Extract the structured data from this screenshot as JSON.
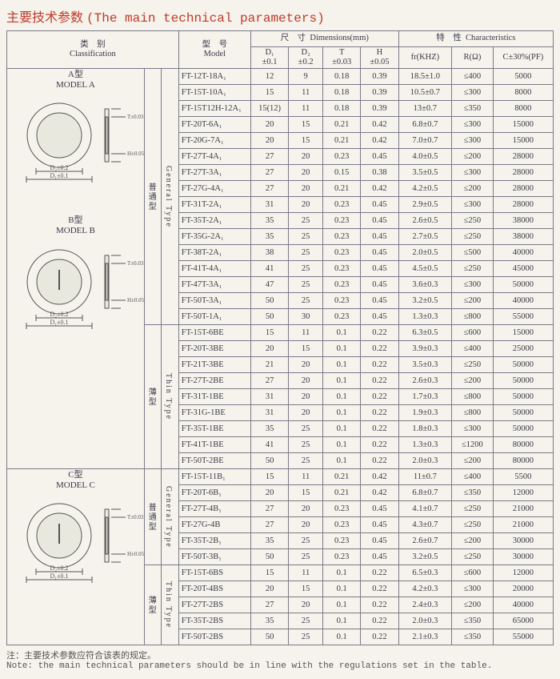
{
  "title_cn": "主要技术参数",
  "title_en": "(The main technical parameters)",
  "header": {
    "classification_cn": "类　别",
    "classification_en": "Classification",
    "model_cn": "型　号",
    "model_en": "Model",
    "dimensions_cn": "尺　寸",
    "dimensions_en": "Dimensions(mm)",
    "characteristics_cn": "特　性",
    "characteristics_en": "Characteristics",
    "d1": "D₁",
    "d1_tol": "±0.1",
    "d2": "D₂",
    "d2_tol": "±0.2",
    "t": "T",
    "t_tol": "±0.03",
    "h": "H",
    "h_tol": "±0.05",
    "fr": "fr(KHZ)",
    "r": "R(Ω)",
    "c": "C±30%(PF)"
  },
  "modelA_label_cn": "A型",
  "modelA_label_en": "MODEL A",
  "modelB_label_cn": "B型",
  "modelB_label_en": "MODEL B",
  "modelC_label_cn": "C型",
  "modelC_label_en": "MODEL C",
  "dim_d2": "D₂±0.2",
  "dim_d1": "D₁±0.1",
  "dim_t": "T±0.03",
  "dim_h": "H±0.05",
  "type_general_cn": "普通型",
  "type_general_en": "General Type",
  "type_thin_cn": "薄型",
  "type_thin_en": "Thin Type",
  "type_general2_cn": "普通型",
  "type_general2_en": "General Type",
  "type_thin2_cn": "薄型",
  "type_thin2_en": "Thin Type",
  "rows": [
    [
      "FT-12T-18A₁",
      "12",
      "9",
      "0.18",
      "0.39",
      "18.5±1.0",
      "≤400",
      "5000"
    ],
    [
      "FT-15T-10A₁",
      "15",
      "11",
      "0.18",
      "0.39",
      "10.5±0.7",
      "≤300",
      "8000"
    ],
    [
      "FT-15T12H-12A₁",
      "15(12)",
      "11",
      "0.18",
      "0.39",
      "13±0.7",
      "≤350",
      "8000"
    ],
    [
      "FT-20T-6A₁",
      "20",
      "15",
      "0.21",
      "0.42",
      "6.8±0.7",
      "≤300",
      "15000"
    ],
    [
      "FT-20G-7A₁",
      "20",
      "15",
      "0.21",
      "0.42",
      "7.0±0.7",
      "≤300",
      "15000"
    ],
    [
      "FT-27T-4A₁",
      "27",
      "20",
      "0.23",
      "0.45",
      "4.0±0.5",
      "≤200",
      "28000"
    ],
    [
      "FT-27T-3A₁",
      "27",
      "20",
      "0.15",
      "0.38",
      "3.5±0.5",
      "≤300",
      "28000"
    ],
    [
      "FT-27G-4A₁",
      "27",
      "20",
      "0.21",
      "0.42",
      "4.2±0.5",
      "≤200",
      "28000"
    ],
    [
      "FT-31T-2A₁",
      "31",
      "20",
      "0.23",
      "0.45",
      "2.9±0.5",
      "≤300",
      "28000"
    ],
    [
      "FT-35T-2A₁",
      "35",
      "25",
      "0.23",
      "0.45",
      "2.6±0.5",
      "≤250",
      "38000"
    ],
    [
      "FT-35G-2A₁",
      "35",
      "25",
      "0.23",
      "0.45",
      "2.7±0.5",
      "≤250",
      "38000"
    ],
    [
      "FT-38T-2A₁",
      "38",
      "25",
      "0.23",
      "0.45",
      "2.0±0.5",
      "≤500",
      "40000"
    ],
    [
      "FT-41T-4A₁",
      "41",
      "25",
      "0.23",
      "0.45",
      "4.5±0.5",
      "≤250",
      "45000"
    ],
    [
      "FT-47T-3A₁",
      "47",
      "25",
      "0.23",
      "0.45",
      "3.6±0.3",
      "≤300",
      "50000"
    ],
    [
      "FT-50T-3A₁",
      "50",
      "25",
      "0.23",
      "0.45",
      "3.2±0.5",
      "≤200",
      "40000"
    ],
    [
      "FT-50T-1A₁",
      "50",
      "30",
      "0.23",
      "0.45",
      "1.3±0.3",
      "≤800",
      "55000"
    ],
    [
      "FT-15T-6BE",
      "15",
      "11",
      "0.1",
      "0.22",
      "6.3±0.5",
      "≤600",
      "15000"
    ],
    [
      "FT-20T-3BE",
      "20",
      "15",
      "0.1",
      "0.22",
      "3.9±0.3",
      "≤400",
      "25000"
    ],
    [
      "FT-21T-3BE",
      "21",
      "20",
      "0.1",
      "0.22",
      "3.5±0.3",
      "≤250",
      "50000"
    ],
    [
      "FT-27T-2BE",
      "27",
      "20",
      "0.1",
      "0.22",
      "2.6±0.3",
      "≤200",
      "50000"
    ],
    [
      "FT-31T-1BE",
      "31",
      "20",
      "0.1",
      "0.22",
      "1.7±0.3",
      "≤800",
      "50000"
    ],
    [
      "FT-31G-1BE",
      "31",
      "20",
      "0.1",
      "0.22",
      "1.9±0.3",
      "≤800",
      "50000"
    ],
    [
      "FT-35T-1BE",
      "35",
      "25",
      "0.1",
      "0.22",
      "1.8±0.3",
      "≤300",
      "50000"
    ],
    [
      "FT-41T-1BE",
      "41",
      "25",
      "0.1",
      "0.22",
      "1.3±0.3",
      "≤1200",
      "80000"
    ],
    [
      "FT-50T-2BE",
      "50",
      "25",
      "0.1",
      "0.22",
      "2.0±0.3",
      "≤200",
      "80000"
    ],
    [
      "FT-15T-11B₁",
      "15",
      "11",
      "0.21",
      "0.42",
      "11±0.7",
      "≤400",
      "5500"
    ],
    [
      "FT-20T-6B₁",
      "20",
      "15",
      "0.21",
      "0.42",
      "6.8±0.7",
      "≤350",
      "12000"
    ],
    [
      "FT-27T-4B₁",
      "27",
      "20",
      "0.23",
      "0.45",
      "4.1±0.7",
      "≤250",
      "21000"
    ],
    [
      "FT-27G-4B",
      "27",
      "20",
      "0.23",
      "0.45",
      "4.3±0.7",
      "≤250",
      "21000"
    ],
    [
      "FT-35T-2B₁",
      "35",
      "25",
      "0.23",
      "0.45",
      "2.6±0.7",
      "≤200",
      "30000"
    ],
    [
      "FT-50T-3B₁",
      "50",
      "25",
      "0.23",
      "0.45",
      "3.2±0.5",
      "≤250",
      "30000"
    ],
    [
      "FT-15T-6BS",
      "15",
      "11",
      "0.1",
      "0.22",
      "6.5±0.3",
      "≤600",
      "12000"
    ],
    [
      "FT-20T-4BS",
      "20",
      "15",
      "0.1",
      "0.22",
      "4.2±0.3",
      "≤300",
      "20000"
    ],
    [
      "FT-27T-2BS",
      "27",
      "20",
      "0.1",
      "0.22",
      "2.4±0.3",
      "≤200",
      "40000"
    ],
    [
      "FT-35T-2BS",
      "35",
      "25",
      "0.1",
      "0.22",
      "2.0±0.3",
      "≤350",
      "65000"
    ],
    [
      "FT-50T-2BS",
      "50",
      "25",
      "0.1",
      "0.22",
      "2.1±0.3",
      "≤350",
      "55000"
    ]
  ],
  "note_cn": "注：主要技术参数应符合该表的规定。",
  "note_en": "Note: the main technical parameters should be in line with the regulations set in the table."
}
